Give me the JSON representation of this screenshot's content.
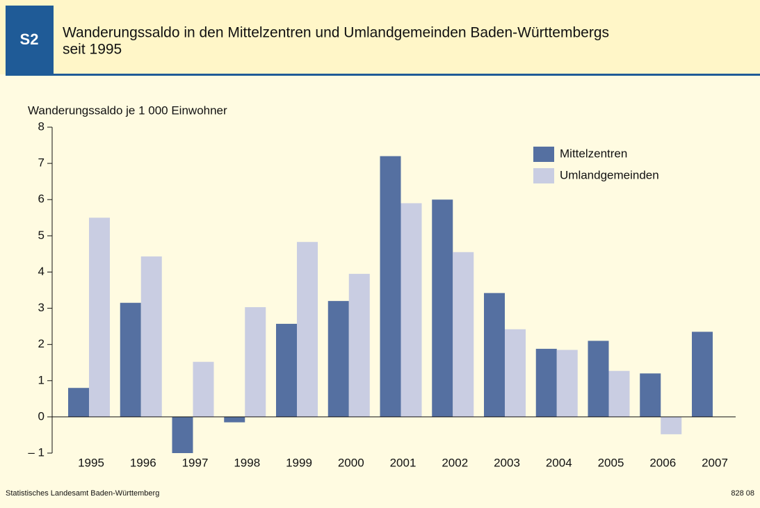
{
  "chart_data": {
    "type": "bar",
    "badge": "S2",
    "title": [
      "Wanderungssaldo in den Mittelzentren und Umlandgemeinden Baden-Württembergs",
      "seit 1995"
    ],
    "y_axis_label": "Wanderungssaldo je 1 000 Einwohner",
    "categories": [
      "1995",
      "1996",
      "1997",
      "1998",
      "1999",
      "2000",
      "2001",
      "2002",
      "2003",
      "2004",
      "2005",
      "2006",
      "2007"
    ],
    "series": [
      {
        "name": "Mittelzentren",
        "color": "#5570a1",
        "values": [
          0.8,
          3.15,
          -1.0,
          -0.15,
          2.57,
          3.2,
          7.2,
          6.0,
          3.42,
          1.88,
          2.1,
          1.2,
          2.35
        ]
      },
      {
        "name": "Umlandgemeinden",
        "color": "#c9cde2",
        "values": [
          5.5,
          4.43,
          1.52,
          3.03,
          4.83,
          3.95,
          5.9,
          4.55,
          2.42,
          1.85,
          1.27,
          -0.48,
          null
        ]
      }
    ],
    "ylim": [
      -1,
      8
    ],
    "yticks": [
      {
        "value": -1,
        "label": "– 1"
      },
      0,
      1,
      2,
      3,
      4,
      5,
      6,
      7,
      8
    ],
    "legend": "upper right",
    "source": "Statistisches Landesamt Baden-Württemberg",
    "code": "828 08"
  }
}
